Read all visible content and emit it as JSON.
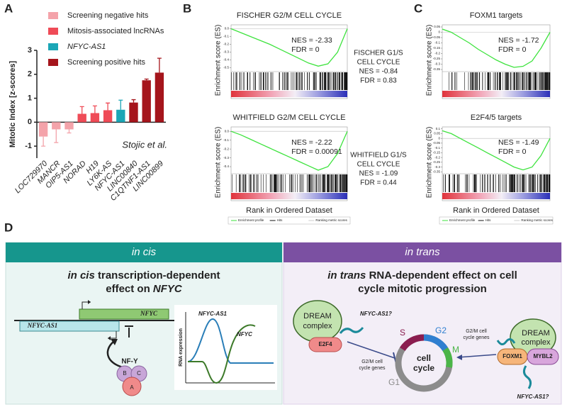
{
  "chart_data": {
    "type": "bar",
    "panel": "A",
    "ylabel": "Mitotic Index [z-scores]",
    "annotation": "Stojic et al.",
    "categories": [
      "LOC729970",
      "MANCR",
      "OIP5-AS1",
      "NORAD",
      "H19",
      "LY6K-AS",
      "NFYC-AS1",
      "LINC00840",
      "C1QTNF1-AS1",
      "LINC00899"
    ],
    "series": [
      {
        "name": "Screening negative hits",
        "color": "#f4a3aa",
        "values": [
          -0.6,
          -0.3,
          -0.3,
          null,
          null,
          null,
          null,
          null,
          null,
          null
        ],
        "errors": [
          0.4,
          0.55,
          0.15,
          null,
          null,
          null,
          null,
          null,
          null,
          null
        ]
      },
      {
        "name": "Mitosis-associated lncRNAs",
        "color": "#ef4b57",
        "values": [
          null,
          null,
          null,
          0.35,
          0.38,
          0.5,
          null,
          null,
          null,
          null
        ],
        "errors": [
          null,
          null,
          null,
          0.3,
          0.3,
          0.3,
          null,
          null,
          null,
          null
        ]
      },
      {
        "name": "NFYC-AS1",
        "color": "#1ba6b6",
        "values": [
          null,
          null,
          null,
          null,
          null,
          null,
          0.52,
          null,
          null,
          null
        ],
        "errors": [
          null,
          null,
          null,
          null,
          null,
          null,
          0.4,
          null,
          null,
          null
        ]
      },
      {
        "name": "Screening positive hits",
        "color": "#a5151c",
        "values": [
          null,
          null,
          null,
          null,
          null,
          null,
          null,
          0.82,
          1.75,
          2.07
        ],
        "errors": [
          null,
          null,
          null,
          null,
          null,
          null,
          null,
          0.12,
          0.05,
          0.6
        ]
      }
    ],
    "ylim": [
      -1.5,
      3
    ],
    "yticks": [
      -1,
      0,
      1,
      2,
      3
    ]
  },
  "gsea": {
    "ylabel": "Enrichment score (ES)",
    "xlabel": "Rank in Ordered Dataset",
    "legend": [
      "Enrichment profile",
      "Hits",
      "Ranking metric scores"
    ],
    "panels": [
      {
        "panel": "B",
        "plots": [
          {
            "title": "FISCHER G2/M CELL CYCLE",
            "stats": [
              "NES = -2.33",
              "FDR = 0"
            ],
            "side": [
              "FISCHER G1/S",
              "CELL CYCLE",
              "NES = -0.84",
              "FDR = 0.83"
            ],
            "ylim": [
              -0.55,
              0.05
            ],
            "yticks": [
              {
                "value": 0,
                "label": "0.0"
              },
              -0.1,
              -0.2,
              -0.3,
              -0.4,
              -0.5
            ],
            "es": [
              0,
              -0.05,
              -0.1,
              -0.15,
              -0.2,
              -0.26,
              -0.32,
              -0.38,
              -0.44,
              -0.48,
              -0.45,
              -0.3,
              0
            ]
          },
          {
            "title": "WHITFIELD G2/M CELL CYCLE",
            "stats": [
              "NES = -2.22",
              "FDR = 0.00091"
            ],
            "side": [
              "WHITFIELD G1/S",
              "CELL CYCLE",
              "NES = -1.09",
              "FDR = 0.44"
            ],
            "ylim": [
              -0.48,
              0.05
            ],
            "yticks": [
              {
                "value": 0,
                "label": "0.0"
              },
              -0.1,
              -0.2,
              -0.3,
              -0.4
            ],
            "es": [
              0,
              -0.04,
              -0.09,
              -0.14,
              -0.19,
              -0.24,
              -0.29,
              -0.34,
              -0.39,
              -0.44,
              -0.4,
              -0.25,
              0
            ]
          }
        ]
      },
      {
        "panel": "C",
        "plots": [
          {
            "title": "FOXM1 targets",
            "stats": [
              "NES = -1.72",
              "FDR = 0"
            ],
            "ylim": [
              -0.37,
              0.07
            ],
            "yticks": [
              0.05,
              0,
              -0.05,
              -0.1,
              -0.15,
              -0.2,
              -0.25,
              -0.3,
              -0.35
            ],
            "es": [
              0.03,
              0,
              -0.05,
              -0.1,
              -0.16,
              -0.21,
              -0.26,
              -0.3,
              -0.33,
              -0.32,
              -0.27,
              -0.15,
              0
            ]
          },
          {
            "title": "E2F4/5 targets",
            "stats": [
              "NES = -1.49",
              "FDR = 0"
            ],
            "ylim": [
              -0.37,
              0.12
            ],
            "yticks": [
              0.1,
              0.05,
              0,
              -0.05,
              -0.1,
              -0.15,
              -0.2,
              -0.25,
              -0.3,
              -0.35
            ],
            "es": [
              0.08,
              0.05,
              0,
              -0.05,
              -0.1,
              -0.15,
              -0.2,
              -0.25,
              -0.3,
              -0.33,
              -0.3,
              -0.18,
              0
            ]
          }
        ]
      }
    ]
  },
  "diagram": {
    "panel": "D",
    "cis": {
      "header": "in cis",
      "title": [
        "in cis",
        " transcription-dependent",
        "effect on ",
        "NFYC"
      ],
      "gene_nfyc": "NFYC",
      "gene_as1": "NFYC-AS1",
      "nfy": "NF-Y",
      "subunits": [
        "B",
        "C",
        "A"
      ],
      "plot_ylabel": "RNA expression",
      "plot_curves": [
        "NFYC-AS1",
        "NFYC"
      ]
    },
    "trans": {
      "header": "in trans",
      "title": [
        "in trans",
        " RNA-dependent effect on cell",
        "cycle mitotic progression"
      ],
      "dream_left": [
        "DREAM",
        "complex"
      ],
      "e2f4": "E2F4",
      "q_left": "NFYC-AS1?",
      "genes_left": [
        "G2/M cell",
        "cycle genes"
      ],
      "cycle": [
        "cell",
        "cycle"
      ],
      "phases": [
        "S",
        "G2",
        "M",
        "G1"
      ],
      "genes_right": [
        "G2/M cell",
        "cycle genes"
      ],
      "dream_right": [
        "DREAM",
        "complex"
      ],
      "foxm1": "FOXM1",
      "mybl2": "MYBL2",
      "q_right": "NFYC-AS1?"
    }
  }
}
